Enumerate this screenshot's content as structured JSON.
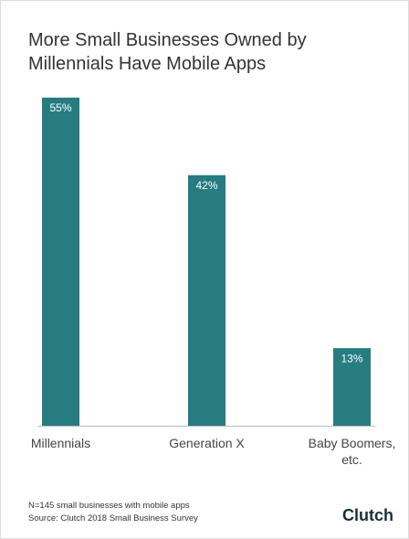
{
  "chart_data": {
    "type": "bar",
    "title": "More Small Businesses Owned by Millennials Have Mobile Apps",
    "categories": [
      "Millennials",
      "Generation X",
      "Baby Boomers, etc."
    ],
    "values": [
      55,
      42,
      13
    ],
    "value_labels": [
      "55%",
      "42%",
      "13%"
    ],
    "color": "#267c80",
    "notes": [
      "N=145 small businesses with mobile apps",
      "Source: Clutch 2018 Small Business Survey"
    ],
    "brand": "Clutch"
  }
}
